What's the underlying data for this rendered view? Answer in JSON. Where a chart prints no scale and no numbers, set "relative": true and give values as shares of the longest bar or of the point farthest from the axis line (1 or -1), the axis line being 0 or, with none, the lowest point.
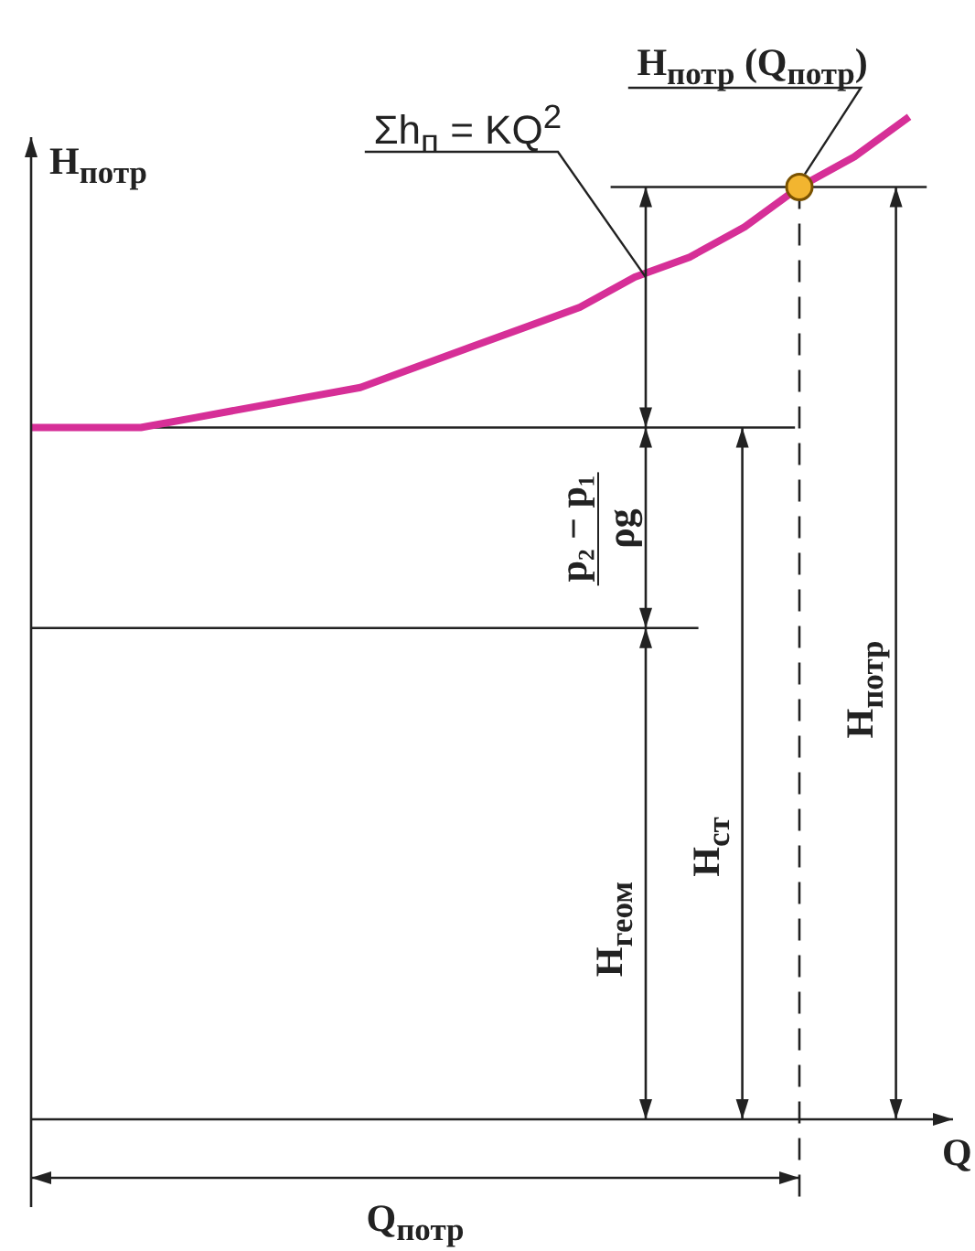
{
  "chart_data": {
    "type": "line",
    "relative": true,
    "xlabel": "Q",
    "ylabel": "H$_{потр}$",
    "categories": [
      null,
      null,
      null,
      null,
      null,
      null,
      null,
      null,
      null,
      null,
      null,
      null,
      null,
      null,
      null,
      null,
      null
    ],
    "series": [
      {
        "color": "#d62f97",
        "values": [
          0.69,
          0.69,
          0.69,
          0.7,
          0.71,
          0.72,
          0.73,
          0.75,
          0.77,
          0.79,
          0.81,
          0.84,
          0.86,
          0.89,
          0.93,
          0.96,
          1.0
        ]
      }
    ],
    "ref_lines": [
      {
        "axis": "y",
        "value": 0.49
      },
      {
        "axis": "y",
        "value": 0.69
      },
      {
        "axis": "y",
        "value": 0.93
      }
    ],
    "annotations": [
      "p₂ − p₁",
      "ρg",
      "Σh$_{п}$ = KQ$^{2}$",
      "H$_{потр}$ (Q$_{потр}$)",
      "H$_{геом}$",
      "H$_{ст}$",
      "H$_{потр}$",
      "Q$_{потр}$"
    ]
  }
}
